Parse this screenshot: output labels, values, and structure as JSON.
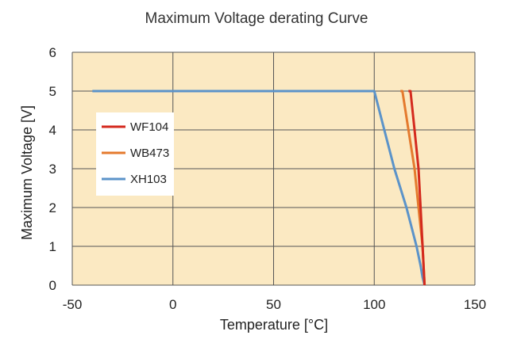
{
  "chart_data": {
    "type": "line",
    "title": "Maximum Voltage derating Curve",
    "xlabel": "Temperature [°C]",
    "ylabel": "Maximum Voltage [V]",
    "xlim": [
      -50,
      150
    ],
    "ylim": [
      0,
      6
    ],
    "xticks": [
      -50,
      0,
      50,
      100,
      150
    ],
    "yticks": [
      0,
      1,
      2,
      3,
      4,
      5,
      6
    ],
    "grid": true,
    "legend_position": "left",
    "colors": {
      "plot_background": "#fbe9c2",
      "grid": "#555555"
    },
    "series": [
      {
        "name": "WF104",
        "color": "#d42a1e",
        "points": [
          [
            117,
            5
          ],
          [
            118,
            5
          ],
          [
            120,
            4
          ],
          [
            122,
            3
          ],
          [
            123,
            2
          ],
          [
            124,
            1
          ],
          [
            125,
            0
          ]
        ]
      },
      {
        "name": "WB473",
        "color": "#e47a2e",
        "points": [
          [
            113,
            5
          ],
          [
            114,
            5
          ],
          [
            117,
            4
          ],
          [
            120,
            3
          ],
          [
            122,
            2
          ],
          [
            124,
            1
          ],
          [
            125,
            0
          ]
        ]
      },
      {
        "name": "XH103",
        "color": "#5b93c9",
        "points": [
          [
            -40,
            5
          ],
          [
            100,
            5
          ],
          [
            105,
            4
          ],
          [
            110,
            3
          ],
          [
            116,
            2
          ],
          [
            121,
            1
          ],
          [
            123,
            0.5
          ],
          [
            124,
            0.2
          ],
          [
            125,
            0
          ]
        ]
      }
    ]
  }
}
